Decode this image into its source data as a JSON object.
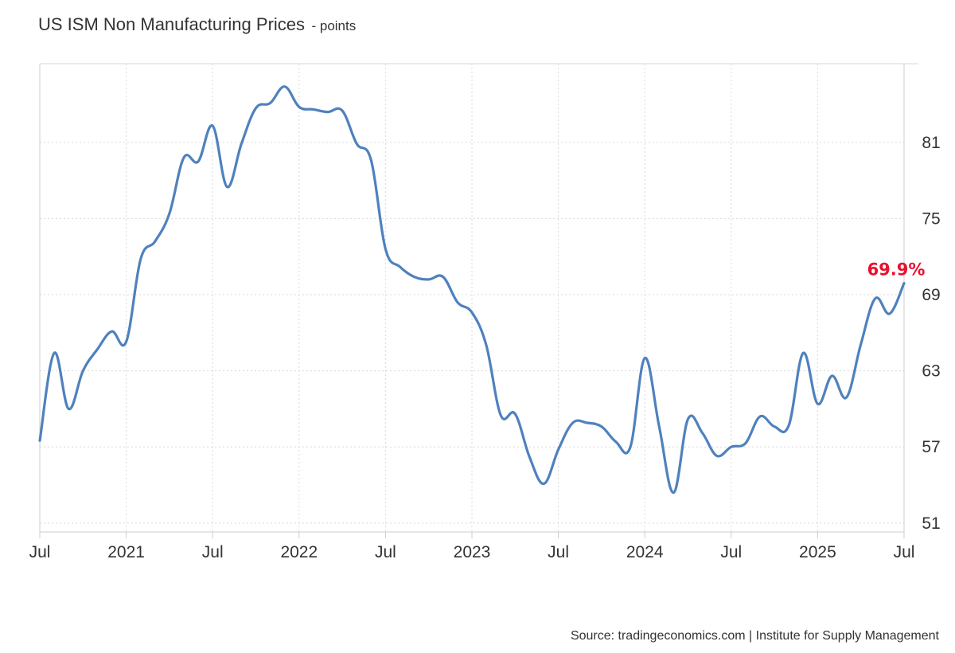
{
  "header": {
    "title": "US ISM Non Manufacturing Prices",
    "unit": "- points"
  },
  "footer": {
    "source": "Source: tradingeconomics.com | Institute for Supply Management"
  },
  "colors": {
    "line": "#4f81bd",
    "highlight": "#e8112d",
    "grid": "#d9d9d9",
    "axis": "#cccccc"
  },
  "chart_data": {
    "type": "line",
    "title": "US ISM Non Manufacturing Prices",
    "unit": "points",
    "x_tick_labels": [
      "Jul",
      "2021",
      "Jul",
      "2022",
      "Jul",
      "2023",
      "Jul",
      "2024",
      "Jul",
      "2025",
      "Jul"
    ],
    "x_range": [
      "2020-07",
      "2025-07"
    ],
    "y_ticks": [
      51,
      57,
      63,
      69,
      75,
      81
    ],
    "y_range": [
      50.3,
      87.2
    ],
    "grid": true,
    "last_value_label": "69.9%",
    "series": [
      {
        "x": [
          "2020-07",
          "2020-08",
          "2020-09",
          "2020-10",
          "2020-11",
          "2020-12",
          "2021-01",
          "2021-02",
          "2021-03",
          "2021-04",
          "2021-05",
          "2021-06",
          "2021-07",
          "2021-08",
          "2021-09",
          "2021-10",
          "2021-11",
          "2021-12",
          "2022-01",
          "2022-02",
          "2022-03",
          "2022-04",
          "2022-05",
          "2022-06",
          "2022-07",
          "2022-08",
          "2022-09",
          "2022-10",
          "2022-11",
          "2022-12",
          "2023-01",
          "2023-02",
          "2023-03",
          "2023-04",
          "2023-05",
          "2023-06",
          "2023-07",
          "2023-08",
          "2023-09",
          "2023-10",
          "2023-11",
          "2023-12",
          "2024-01",
          "2024-02",
          "2024-03",
          "2024-04",
          "2024-05",
          "2024-06",
          "2024-07",
          "2024-08",
          "2024-09",
          "2024-10",
          "2024-11",
          "2024-12",
          "2025-01",
          "2025-02",
          "2025-03",
          "2025-04",
          "2025-05",
          "2025-06",
          "2025-07"
        ],
        "values": [
          57.5,
          64.4,
          60.0,
          63.0,
          64.7,
          66.1,
          65.3,
          71.8,
          73.2,
          75.4,
          79.8,
          79.5,
          82.3,
          77.5,
          80.9,
          83.7,
          84.1,
          85.4,
          83.8,
          83.6,
          83.4,
          83.5,
          80.9,
          79.6,
          72.6,
          71.2,
          70.4,
          70.2,
          70.4,
          68.4,
          67.6,
          65.0,
          59.5,
          59.6,
          56.2,
          54.1,
          56.8,
          58.9,
          58.9,
          58.6,
          57.4,
          57.0,
          64.0,
          58.6,
          53.4,
          59.2,
          58.1,
          56.3,
          57.0,
          57.3,
          59.4,
          58.6,
          58.7,
          64.4,
          60.4,
          62.6,
          60.9,
          65.1,
          68.7,
          67.5,
          69.9
        ]
      }
    ]
  }
}
